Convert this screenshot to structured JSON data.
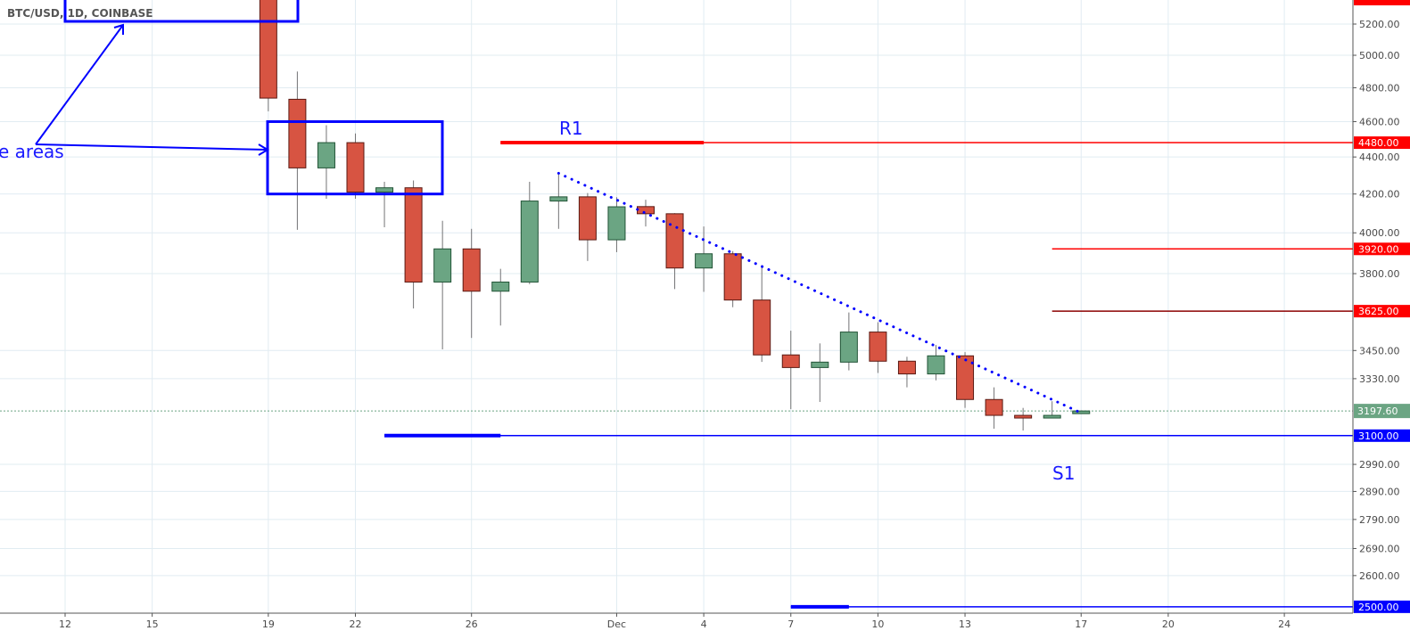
{
  "header": {
    "symbol": "BTC/USD, 1D, COINBASE"
  },
  "colors": {
    "up": "#6ba583",
    "down": "#d75442",
    "up_border": "#225437",
    "down_border": "#5b1a13",
    "wick": "#737375",
    "grid": "#e1ecf2",
    "resistance": "#ff0000",
    "support": "#0000ff",
    "annotation": "#1a1aff"
  },
  "chart_data": {
    "type": "candlestick",
    "title": "BTC/USD, 1D, COINBASE",
    "y_scale": "log",
    "ylim": [
      2480,
      5330
    ],
    "y_ticks": [
      "5200.00",
      "5000.00",
      "4800.00",
      "4600.00",
      "4400.00",
      "4200.00",
      "4000.00",
      "3800.00",
      "3450.00",
      "3330.00",
      "2990.00",
      "2890.00",
      "2790.00",
      "2690.00",
      "2600.00"
    ],
    "x_ticks": [
      "12",
      "15",
      "19",
      "22",
      "26",
      "Dec",
      "4",
      "7",
      "10",
      "13",
      "17",
      "20",
      "24"
    ],
    "x_tick_dates": [
      "Nov 12",
      "Nov 15",
      "Nov 19",
      "Nov 22",
      "Nov 26",
      "Dec 1",
      "Dec 4",
      "Dec 7",
      "Dec 10",
      "Dec 13",
      "Dec 17",
      "Dec 20",
      "Dec 24"
    ],
    "grid": true,
    "candles": [
      {
        "date": "Nov 19",
        "o": 5620,
        "h": 5650,
        "l": 4660,
        "c": 4738
      },
      {
        "date": "Nov 20",
        "o": 4731,
        "h": 4899,
        "l": 4015,
        "c": 4340
      },
      {
        "date": "Nov 21",
        "o": 4340,
        "h": 4579,
        "l": 4175,
        "c": 4480
      },
      {
        "date": "Nov 22",
        "o": 4480,
        "h": 4532,
        "l": 4175,
        "c": 4210
      },
      {
        "date": "Nov 23",
        "o": 4210,
        "h": 4265,
        "l": 4028,
        "c": 4233
      },
      {
        "date": "Nov 24",
        "o": 4233,
        "h": 4272,
        "l": 3637,
        "c": 3760
      },
      {
        "date": "Nov 25",
        "o": 3760,
        "h": 4061,
        "l": 3455,
        "c": 3920
      },
      {
        "date": "Nov 26",
        "o": 3920,
        "h": 4020,
        "l": 3505,
        "c": 3717
      },
      {
        "date": "Nov 27",
        "o": 3717,
        "h": 3823,
        "l": 3560,
        "c": 3760
      },
      {
        "date": "Nov 28",
        "o": 3760,
        "h": 4265,
        "l": 3750,
        "c": 4163
      },
      {
        "date": "Nov 29",
        "o": 4163,
        "h": 4311,
        "l": 4020,
        "c": 4185
      },
      {
        "date": "Nov 30",
        "o": 4185,
        "h": 4205,
        "l": 3861,
        "c": 3965
      },
      {
        "date": "Dec 1",
        "o": 3965,
        "h": 4183,
        "l": 3904,
        "c": 4133
      },
      {
        "date": "Dec 2",
        "o": 4134,
        "h": 4170,
        "l": 4032,
        "c": 4097
      },
      {
        "date": "Dec 3",
        "o": 4097,
        "h": 4100,
        "l": 3727,
        "c": 3827
      },
      {
        "date": "Dec 4",
        "o": 3827,
        "h": 4032,
        "l": 3714,
        "c": 3896
      },
      {
        "date": "Dec 5",
        "o": 3896,
        "h": 3909,
        "l": 3643,
        "c": 3676
      },
      {
        "date": "Dec 6",
        "o": 3676,
        "h": 3841,
        "l": 3401,
        "c": 3431
      },
      {
        "date": "Dec 7",
        "o": 3431,
        "h": 3537,
        "l": 3205,
        "c": 3377
      },
      {
        "date": "Dec 8",
        "o": 3377,
        "h": 3481,
        "l": 3234,
        "c": 3400
      },
      {
        "date": "Dec 9",
        "o": 3400,
        "h": 3619,
        "l": 3365,
        "c": 3531
      },
      {
        "date": "Dec 10",
        "o": 3531,
        "h": 3575,
        "l": 3354,
        "c": 3404
      },
      {
        "date": "Dec 11",
        "o": 3404,
        "h": 3423,
        "l": 3294,
        "c": 3350
      },
      {
        "date": "Dec 12",
        "o": 3350,
        "h": 3474,
        "l": 3323,
        "c": 3427
      },
      {
        "date": "Dec 13",
        "o": 3427,
        "h": 3443,
        "l": 3210,
        "c": 3244
      },
      {
        "date": "Dec 14",
        "o": 3244,
        "h": 3294,
        "l": 3127,
        "c": 3180
      },
      {
        "date": "Dec 15",
        "o": 3180,
        "h": 3210,
        "l": 3120,
        "c": 3170
      },
      {
        "date": "Dec 16",
        "o": 3170,
        "h": 3237,
        "l": 3168,
        "c": 3180
      },
      {
        "date": "Dec 17",
        "o": 3190,
        "h": 3200,
        "l": 3188,
        "c": 3197.6
      }
    ],
    "last_price": {
      "value": 3197.6,
      "label": "3197.60",
      "color": "#6ba583"
    },
    "levels": [
      {
        "price": 4480,
        "label": "4480.00",
        "color": "#ff0000",
        "from": "Nov 27",
        "thick_to": "Dec 4"
      },
      {
        "price": 3920,
        "label": "3920.00",
        "color": "#ff0000",
        "from": "Dec 16"
      },
      {
        "price": 3625,
        "label": "3625.00",
        "color": "#8b0000",
        "label_color": "#ff0000",
        "from": "Dec 16"
      },
      {
        "price": 3100,
        "label": "3100.00",
        "color": "#0000ff",
        "from": "Nov 23",
        "thick_to": "Nov 27"
      },
      {
        "price": 2500,
        "label": "2500.00",
        "color": "#0000ff",
        "from": "Dec 7",
        "thick_to": "Dec 9"
      }
    ],
    "trendline": {
      "from": {
        "date": "Nov 29",
        "price": 4311
      },
      "to": {
        "date": "Dec 17",
        "price": 3190
      },
      "style": "dotted"
    },
    "annotations": {
      "r1": "R1",
      "s1": "S1",
      "areas": "e areas"
    }
  }
}
